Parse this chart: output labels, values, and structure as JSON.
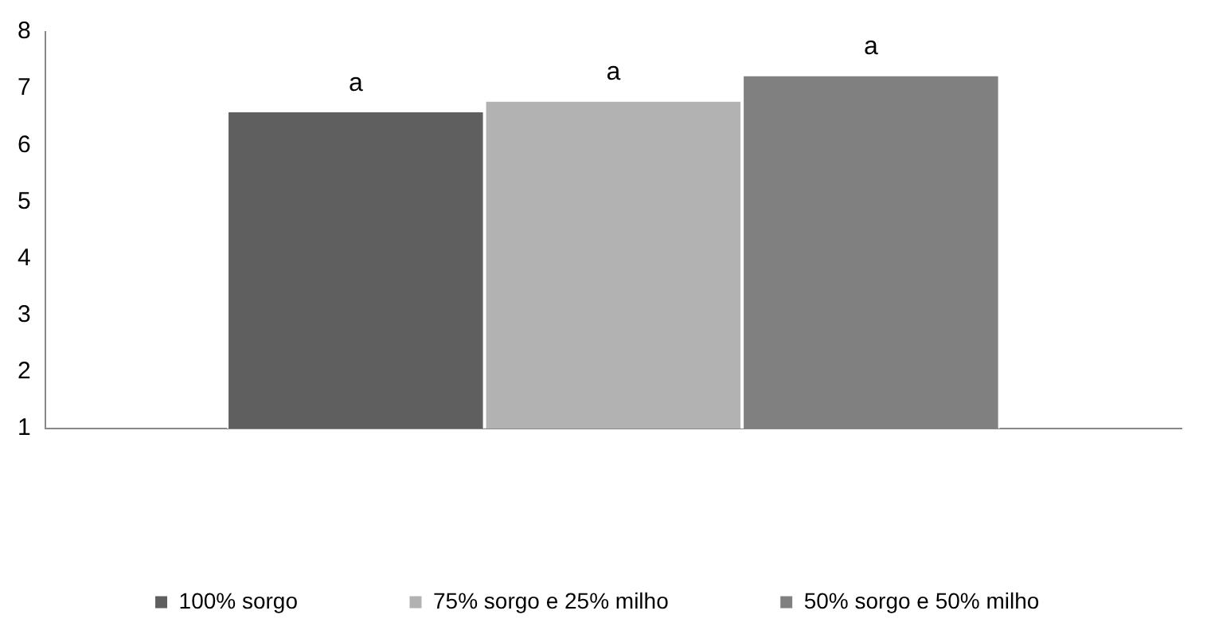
{
  "chart_data": {
    "type": "bar",
    "categories": [
      null
    ],
    "series": [
      {
        "name": "100% sorgo",
        "color": "#5f5f5f",
        "values": [
          6.58
        ],
        "value_labels": [
          "a"
        ]
      },
      {
        "name": "75% sorgo e 25% milho",
        "color": "#b2b2b2",
        "values": [
          6.77
        ],
        "value_labels": [
          "a"
        ]
      },
      {
        "name": "50% sorgo e 50% milho",
        "color": "#808080",
        "values": [
          7.22
        ],
        "value_labels": [
          "a"
        ]
      }
    ],
    "ylim": [
      1,
      8
    ],
    "yticks": [
      1,
      2,
      3,
      4,
      5,
      6,
      7,
      8
    ],
    "grid": false,
    "legend": "bottom"
  }
}
